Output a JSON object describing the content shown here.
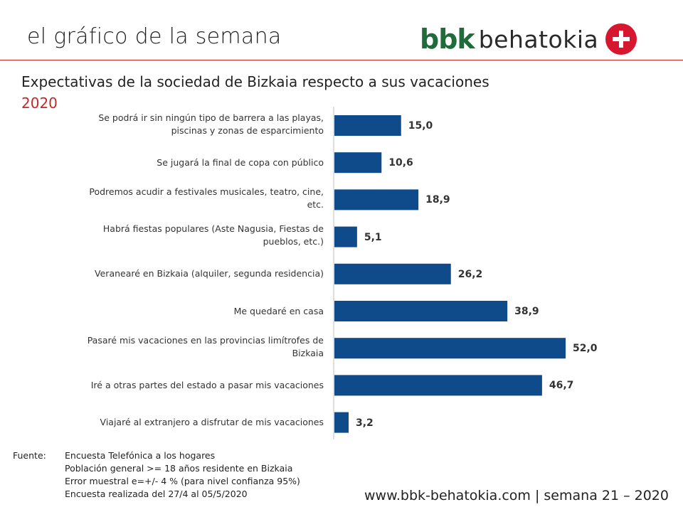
{
  "header": {
    "title": "el gráfico de la semana",
    "logo_bbk": "bbk",
    "logo_behatokia": "behatokia",
    "logo_icon": "plus-cross-icon",
    "accent_color": "#c62828",
    "logo_green": "#1f6b3a",
    "logo_red": "#d7172f"
  },
  "chart_data": {
    "type": "bar",
    "orientation": "horizontal",
    "title": "Expectativas de la sociedad de Bizkaia respecto a sus vacaciones",
    "subtitle": "2020",
    "categories": [
      [
        "Se podrá ir sin ningún tipo de barrera a las playas,",
        "piscinas y zonas de esparcimiento"
      ],
      [
        "Se jugará la final de copa con público"
      ],
      [
        "Podremos acudir a festivales musicales, teatro, cine,",
        "etc."
      ],
      [
        "Habrá fiestas populares (Aste Nagusia, Fiestas de",
        "pueblos, etc.)"
      ],
      [
        "Veranearé en Bizkaia (alquiler, segunda residencia)"
      ],
      [
        "Me quedaré en casa"
      ],
      [
        "Pasaré mis vacaciones en las provincias limítrofes de",
        "Bizkaia"
      ],
      [
        "Iré a otras partes del estado a pasar mis vacaciones"
      ],
      [
        "Viajaré al extranjero a disfrutar de mis vacaciones"
      ]
    ],
    "values": [
      15.0,
      10.6,
      18.9,
      5.1,
      26.2,
      38.9,
      52.0,
      46.7,
      3.2
    ],
    "value_labels": [
      "15,0",
      "10,6",
      "18,9",
      "5,1",
      "26,2",
      "38,9",
      "52,0",
      "46,7",
      "3,2"
    ],
    "xlim": [
      0,
      60
    ],
    "grid": false,
    "bar_color": "#0f4a8a"
  },
  "source": {
    "label": "Fuente:",
    "lines": [
      "Encuesta Telefónica a los hogares",
      "Población general >= 18 años residente en Bizkaia",
      "Error muestral e=+/- 4 % (para nivel confianza 95%)",
      "Encuesta realizada del 27/4 al 05/5/2020"
    ]
  },
  "footer": {
    "text": "www.bbk-behatokia.com | semana 21 – 2020"
  }
}
